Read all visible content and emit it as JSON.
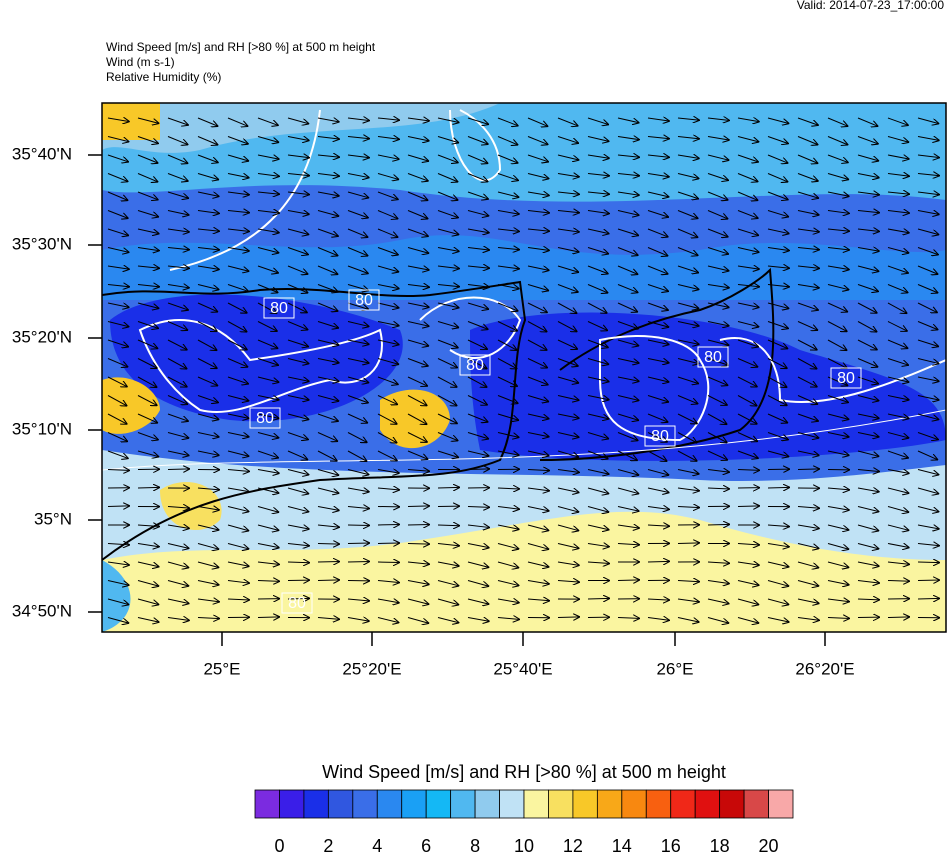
{
  "header": {
    "valid": "Valid: 2014-07-23_17:00:00",
    "lines": [
      "Wind Speed [m/s] and RH [>80 %] at 500 m height",
      "Wind   (m s-1)",
      "Relative Humidity   (%)"
    ]
  },
  "map": {
    "lat_labels": [
      "35°40'N",
      "35°30'N",
      "35°20'N",
      "35°10'N",
      "35°N",
      "34°50'N"
    ],
    "lon_labels": [
      "25°E",
      "25°20'E",
      "25°40'E",
      "26°E",
      "26°20'E"
    ],
    "contour_labels": [
      "80",
      "80",
      "80",
      "80",
      "80",
      "80",
      "80",
      "80"
    ]
  },
  "colorbar": {
    "title": "Wind Speed [m/s] and RH [>80 %] at 500 m height",
    "colors": [
      "#7b2be0",
      "#3a1ee8",
      "#1a2fe8",
      "#3057e0",
      "#3a6ee8",
      "#2a88f0",
      "#1aa0f5",
      "#14b8f5",
      "#50b8f0",
      "#90cbee",
      "#c0e2f5",
      "#faf5a0",
      "#f8e060",
      "#f8c828",
      "#f8a818",
      "#f88810",
      "#f86010",
      "#f02818",
      "#e01010",
      "#c80808",
      "#d84848",
      "#f8a8a8"
    ],
    "tick_labels": [
      "0",
      "2",
      "4",
      "6",
      "8",
      "10",
      "12",
      "14",
      "16",
      "18",
      "20"
    ]
  }
}
